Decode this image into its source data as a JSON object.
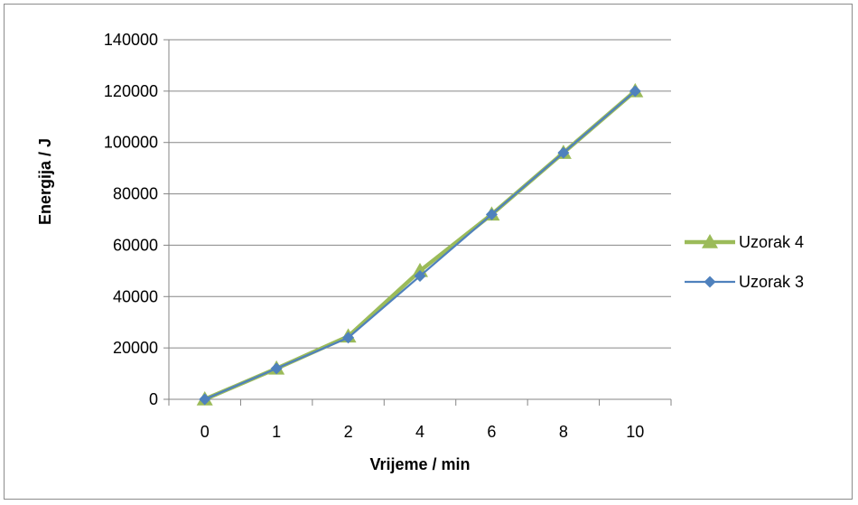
{
  "chart_data": {
    "type": "line",
    "xlabel": "Vrijeme / min",
    "ylabel": "Energija / J",
    "categories": [
      "0",
      "1",
      "2",
      "4",
      "6",
      "8",
      "10"
    ],
    "ylim": [
      0,
      140000
    ],
    "yticks": [
      "0",
      "20000",
      "40000",
      "60000",
      "80000",
      "100000",
      "120000",
      "140000"
    ],
    "grid": "horizontal",
    "legend_position": "right",
    "series": [
      {
        "name": "Uzorak 4",
        "values": [
          0,
          12000,
          24500,
          50000,
          72000,
          96000,
          120000
        ],
        "color": "#9bbb59",
        "marker": "triangle"
      },
      {
        "name": "Uzorak 3",
        "values": [
          0,
          12000,
          24000,
          48000,
          72000,
          96000,
          120000
        ],
        "color": "#4f81bd",
        "marker": "diamond"
      }
    ]
  }
}
